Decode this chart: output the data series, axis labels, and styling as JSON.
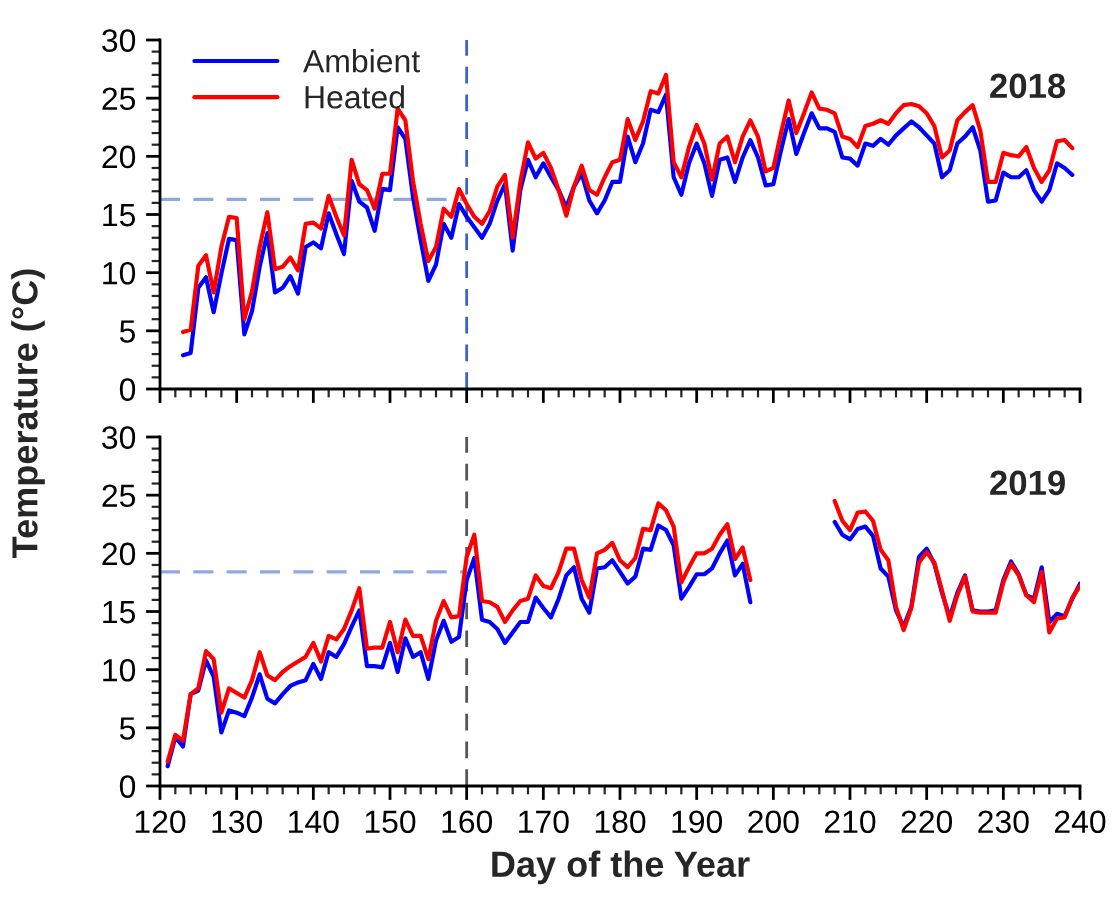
{
  "chart_data": [
    {
      "type": "line",
      "ylabel": "Temperature (°C)",
      "annotations": [
        "2018"
      ],
      "legend": "top left",
      "tick_labels": "y",
      "grid": false,
      "xlim": [
        120,
        240
      ],
      "xticks": [
        120,
        130,
        140,
        150,
        160,
        170,
        180,
        190,
        200,
        210,
        220,
        230,
        240
      ],
      "ylim": [
        0,
        30
      ],
      "yticks": [
        0,
        5,
        10,
        15,
        20,
        25,
        30
      ],
      "x": [
        123,
        124,
        125,
        126,
        127,
        128,
        129,
        130,
        131,
        132,
        133,
        134,
        135,
        136,
        137,
        138,
        139,
        140,
        141,
        142,
        143,
        144,
        145,
        146,
        147,
        148,
        149,
        150,
        151,
        152,
        153,
        154,
        155,
        156,
        157,
        158,
        159,
        160,
        161,
        162,
        163,
        164,
        165,
        166,
        167,
        168,
        169,
        170,
        171,
        172,
        173,
        174,
        175,
        176,
        177,
        178,
        179,
        180,
        181,
        182,
        183,
        184,
        185,
        186,
        187,
        188,
        189,
        190,
        191,
        192,
        193,
        194,
        195,
        196,
        197,
        198,
        199,
        200,
        201,
        202,
        203,
        204,
        205,
        206,
        207,
        208,
        209,
        210,
        211,
        212,
        213,
        214,
        215,
        216,
        217,
        218,
        219,
        220,
        221,
        222,
        223,
        224,
        225,
        226,
        227,
        228,
        229,
        230,
        231,
        232,
        233,
        234,
        235,
        236,
        237,
        238,
        239
      ],
      "series": [
        {
          "name": "Ambient",
          "color": "#0000ff",
          "values": [
            2.9,
            3.1,
            8.7,
            9.6,
            6.6,
            9.9,
            12.9,
            12.8,
            4.7,
            6.7,
            10.5,
            13.4,
            8.3,
            8.7,
            9.7,
            8.2,
            12.2,
            12.6,
            12.1,
            15.1,
            13.3,
            11.6,
            17.9,
            16.1,
            15.6,
            13.6,
            17.2,
            17.1,
            22.5,
            21.5,
            16.5,
            12.8,
            9.3,
            10.7,
            14.2,
            13.0,
            15.9,
            14.8,
            13.9,
            13.0,
            14.2,
            16.2,
            17.6,
            11.9,
            17.1,
            19.7,
            18.2,
            19.4,
            18.2,
            17.1,
            15.6,
            17.4,
            18.5,
            16.2,
            15.1,
            16.2,
            17.8,
            17.8,
            21.7,
            19.5,
            21.1,
            24.0,
            23.8,
            25.3,
            18.2,
            16.7,
            19.4,
            21.1,
            19.4,
            16.6,
            19.7,
            19.9,
            17.8,
            19.9,
            21.4,
            19.9,
            17.5,
            17.6,
            20.5,
            23.2,
            20.2,
            22.0,
            23.7,
            22.4,
            22.4,
            22.1,
            19.9,
            19.8,
            19.2,
            21.1,
            20.9,
            21.5,
            21.0,
            21.8,
            22.4,
            23.0,
            22.5,
            21.8,
            21.1,
            18.2,
            18.8,
            21.1,
            21.7,
            22.5,
            20.5,
            16.1,
            16.2,
            18.6,
            18.2,
            18.2,
            18.8,
            17.1,
            16.1,
            17.1,
            19.4,
            19.0,
            18.4
          ]
        },
        {
          "name": "Heated",
          "color": "#ff0000",
          "values": [
            4.9,
            5.1,
            10.6,
            11.5,
            8.3,
            12.2,
            14.8,
            14.7,
            6.0,
            8.4,
            12.2,
            15.2,
            10.3,
            10.5,
            11.3,
            10.2,
            14.2,
            14.3,
            13.8,
            16.6,
            14.8,
            13.2,
            19.7,
            17.6,
            17.1,
            15.5,
            18.5,
            18.5,
            24.1,
            23.1,
            17.9,
            14.2,
            11.0,
            12.2,
            15.5,
            14.8,
            17.2,
            15.9,
            14.8,
            14.2,
            15.3,
            17.4,
            18.4,
            13.0,
            17.8,
            21.2,
            19.8,
            20.3,
            19.0,
            17.1,
            14.9,
            17.4,
            19.2,
            17.1,
            16.7,
            18.2,
            19.5,
            19.7,
            23.2,
            21.4,
            23.0,
            25.6,
            25.4,
            27.0,
            19.5,
            18.2,
            20.8,
            22.7,
            21.1,
            18.0,
            21.1,
            21.7,
            19.5,
            21.7,
            23.1,
            21.7,
            18.7,
            19.0,
            22.0,
            24.8,
            22.0,
            23.7,
            25.5,
            24.1,
            24.0,
            23.7,
            21.7,
            21.5,
            20.8,
            22.6,
            22.8,
            23.1,
            22.8,
            23.7,
            24.4,
            24.5,
            24.3,
            23.7,
            22.6,
            19.9,
            20.5,
            23.1,
            23.8,
            24.4,
            22.2,
            17.8,
            17.8,
            20.3,
            20.1,
            20.0,
            20.8,
            19.0,
            17.8,
            18.8,
            21.3,
            21.4,
            20.7
          ]
        }
      ],
      "ref_lines": [
        {
          "axis": "x",
          "value": 160,
          "color": "#3a62c8",
          "line_style": "dashed"
        },
        {
          "axis": "y",
          "value": 16.3,
          "color": "#8fa8e0",
          "line_style": "dashed"
        }
      ]
    },
    {
      "type": "line",
      "xlabel": "Day of the Year",
      "annotations": [
        "2019"
      ],
      "grid": false,
      "xlim": [
        120,
        240
      ],
      "xticks": [
        120,
        130,
        140,
        150,
        160,
        170,
        180,
        190,
        200,
        210,
        220,
        230,
        240
      ],
      "ylim": [
        0,
        30
      ],
      "yticks": [
        0,
        5,
        10,
        15,
        20,
        25,
        30
      ],
      "x": [
        121,
        122,
        123,
        124,
        125,
        126,
        127,
        128,
        129,
        130,
        131,
        132,
        133,
        134,
        135,
        136,
        137,
        138,
        139,
        140,
        141,
        142,
        143,
        144,
        145,
        146,
        147,
        148,
        149,
        150,
        151,
        152,
        153,
        154,
        155,
        156,
        157,
        158,
        159,
        160,
        161,
        162,
        163,
        164,
        165,
        166,
        167,
        168,
        169,
        170,
        171,
        172,
        173,
        174,
        175,
        176,
        177,
        178,
        179,
        180,
        181,
        182,
        183,
        184,
        185,
        186,
        187,
        188,
        189,
        190,
        191,
        192,
        193,
        194,
        195,
        196,
        197,
        198,
        199,
        200,
        201,
        202,
        203,
        204,
        205,
        206,
        207,
        208,
        209,
        210,
        211,
        212,
        213,
        214,
        215,
        216,
        217,
        218,
        219,
        220,
        221,
        222,
        223,
        224,
        225,
        226,
        227,
        228,
        229,
        230,
        231,
        232,
        233,
        234,
        235,
        236,
        237,
        238,
        239,
        240
      ],
      "series": [
        {
          "color": "#0000ff",
          "values": [
            1.7,
            4.2,
            3.4,
            7.9,
            8.2,
            10.8,
            9.4,
            4.6,
            6.5,
            6.3,
            6.0,
            7.6,
            9.6,
            7.5,
            7.1,
            7.9,
            8.6,
            8.9,
            9.1,
            10.5,
            9.2,
            11.5,
            11.1,
            12.2,
            13.7,
            15.1,
            10.3,
            10.3,
            10.2,
            12.3,
            9.8,
            12.7,
            11.1,
            11.5,
            9.2,
            12.5,
            14.2,
            12.4,
            12.8,
            17.7,
            19.6,
            14.3,
            14.1,
            13.5,
            12.3,
            13.2,
            14.1,
            14.1,
            16.2,
            15.3,
            14.5,
            16.1,
            18.1,
            18.8,
            16.1,
            14.9,
            18.7,
            18.8,
            19.4,
            18.4,
            17.4,
            18.0,
            20.4,
            20.3,
            22.4,
            22.0,
            20.7,
            16.1,
            17.1,
            18.2,
            18.2,
            18.7,
            20.0,
            21.1,
            18.1,
            19.1,
            15.8,
            null,
            null,
            null,
            null,
            null,
            null,
            null,
            null,
            null,
            null,
            22.7,
            21.6,
            21.2,
            22.1,
            22.3,
            21.5,
            18.7,
            18.0,
            15.1,
            13.7,
            15.4,
            19.7,
            20.4,
            19.1,
            16.6,
            14.5,
            16.6,
            18.1,
            15.1,
            15.0,
            15.0,
            15.1,
            17.7,
            19.3,
            18.2,
            16.4,
            16.1,
            18.8,
            14.1,
            14.8,
            14.6,
            16.1,
            17.4
          ]
        },
        {
          "color": "#ff0000",
          "values": [
            2.1,
            4.4,
            3.9,
            7.9,
            8.4,
            11.6,
            10.9,
            6.3,
            8.4,
            8.0,
            7.6,
            9.1,
            11.5,
            9.5,
            9.1,
            9.8,
            10.3,
            10.7,
            11.1,
            12.3,
            10.7,
            12.9,
            12.6,
            13.5,
            15.1,
            17.0,
            11.8,
            11.9,
            11.9,
            14.1,
            11.5,
            14.3,
            12.9,
            12.9,
            10.9,
            14.2,
            15.9,
            14.5,
            14.6,
            19.7,
            21.6,
            15.9,
            15.8,
            15.4,
            14.1,
            15.1,
            15.9,
            16.1,
            18.1,
            17.2,
            17.0,
            18.4,
            20.4,
            20.4,
            17.7,
            16.2,
            20.0,
            20.3,
            20.9,
            19.4,
            18.8,
            19.6,
            22.1,
            22.0,
            24.3,
            23.7,
            22.3,
            17.5,
            18.8,
            20.0,
            20.0,
            20.4,
            21.6,
            22.5,
            19.5,
            20.5,
            17.7,
            null,
            null,
            null,
            null,
            null,
            null,
            null,
            null,
            null,
            null,
            24.5,
            22.8,
            22.0,
            23.5,
            23.6,
            22.8,
            20.3,
            19.4,
            15.4,
            13.4,
            15.3,
            19.2,
            20.1,
            19.2,
            16.8,
            14.2,
            16.4,
            18.0,
            15.0,
            14.9,
            14.9,
            14.9,
            17.5,
            19.1,
            18.1,
            16.4,
            15.8,
            18.4,
            13.2,
            14.4,
            14.5,
            16.2,
            17.2
          ]
        }
      ],
      "ref_lines": [
        {
          "axis": "x",
          "value": 160,
          "color": "#555555",
          "line_style": "dashed"
        },
        {
          "axis": "y",
          "value": 18.4,
          "color": "#8fa8e0",
          "line_style": "dashed"
        }
      ]
    }
  ]
}
